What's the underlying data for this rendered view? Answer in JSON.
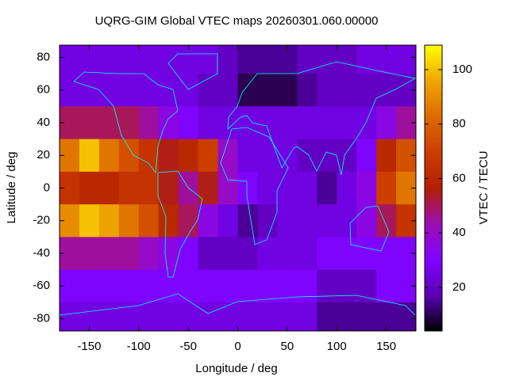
{
  "chart_data": {
    "type": "heatmap",
    "title": "UQRG-GIM Global VTEC maps 20260301.060.00000",
    "x_label": "Longitude / deg",
    "y_label": "Latitude / deg",
    "colorbar_label": "VTEC / TECU",
    "x": [
      -170,
      -150,
      -130,
      -110,
      -90,
      -70,
      -50,
      -30,
      -10,
      10,
      30,
      50,
      70,
      90,
      110,
      130,
      150,
      170
    ],
    "y": [
      80,
      60,
      40,
      20,
      0,
      -20,
      -40,
      -60,
      -80
    ],
    "z": [
      [
        25,
        25,
        25,
        25,
        25,
        25,
        25,
        25,
        20,
        15,
        15,
        15,
        20,
        20,
        20,
        25,
        25,
        25
      ],
      [
        25,
        25,
        25,
        25,
        25,
        25,
        25,
        20,
        20,
        10,
        10,
        10,
        15,
        20,
        20,
        20,
        20,
        20
      ],
      [
        50,
        50,
        50,
        50,
        45,
        35,
        30,
        25,
        25,
        25,
        25,
        25,
        25,
        25,
        25,
        25,
        35,
        45
      ],
      [
        85,
        100,
        85,
        75,
        65,
        55,
        60,
        70,
        40,
        25,
        25,
        25,
        20,
        20,
        20,
        30,
        60,
        75
      ],
      [
        65,
        60,
        60,
        65,
        65,
        55,
        45,
        55,
        40,
        30,
        25,
        25,
        25,
        15,
        25,
        35,
        70,
        85
      ],
      [
        90,
        100,
        95,
        85,
        75,
        60,
        50,
        35,
        25,
        15,
        20,
        25,
        25,
        25,
        25,
        35,
        50,
        65
      ],
      [
        45,
        45,
        45,
        45,
        40,
        35,
        30,
        20,
        20,
        20,
        25,
        25,
        25,
        30,
        30,
        30,
        30,
        30
      ],
      [
        30,
        30,
        30,
        30,
        30,
        30,
        30,
        30,
        30,
        30,
        30,
        30,
        30,
        20,
        20,
        20,
        30,
        30
      ],
      [
        25,
        25,
        25,
        25,
        25,
        25,
        25,
        25,
        25,
        25,
        25,
        25,
        25,
        15,
        15,
        15,
        15,
        15
      ]
    ],
    "xlim": [
      -180,
      180
    ],
    "ylim": [
      -87.5,
      87.5
    ],
    "xticks": [
      -150,
      -100,
      -50,
      0,
      50,
      100,
      150
    ],
    "yticks": [
      -80,
      -60,
      -40,
      -20,
      0,
      20,
      40,
      60,
      80
    ],
    "cblim": [
      4,
      109
    ],
    "cbticks": [
      20,
      40,
      60,
      80,
      100
    ],
    "colormap": [
      "#000000",
      "#5a00b4",
      "#8004ff",
      "#9c0db4",
      "#b42000",
      "#cc3d00",
      "#dd6b00",
      "#efa600",
      "#ffff00"
    ],
    "coastline_color": "#00ffff"
  }
}
